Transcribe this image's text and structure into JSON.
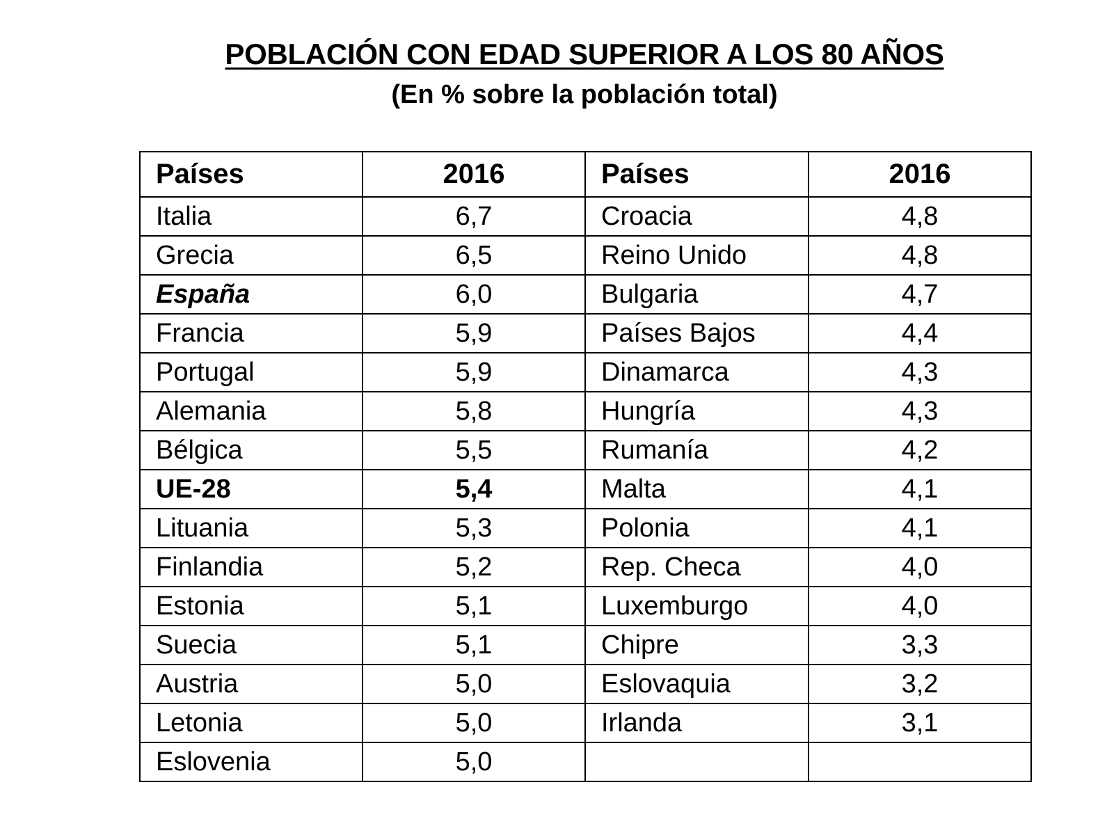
{
  "title": "POBLACIÓN CON EDAD SUPERIOR A LOS 80 AÑOS",
  "subtitle": "(En % sobre la población total)",
  "table": {
    "headers": [
      "Países",
      "2016",
      "Países",
      "2016"
    ],
    "left": [
      {
        "country": "Italia",
        "value": "6,7"
      },
      {
        "country": "Grecia",
        "value": "6,5"
      },
      {
        "country": "España",
        "value": "6,0"
      },
      {
        "country": "Francia",
        "value": "5,9"
      },
      {
        "country": "Portugal",
        "value": "5,9"
      },
      {
        "country": "Alemania",
        "value": "5,8"
      },
      {
        "country": "Bélgica",
        "value": "5,5"
      },
      {
        "country": "UE-28",
        "value": "5,4"
      },
      {
        "country": "Lituania",
        "value": "5,3"
      },
      {
        "country": "Finlandia",
        "value": "5,2"
      },
      {
        "country": "Estonia",
        "value": "5,1"
      },
      {
        "country": "Suecia",
        "value": "5,1"
      },
      {
        "country": "Austria",
        "value": "5,0"
      },
      {
        "country": "Letonia",
        "value": "5,0"
      },
      {
        "country": "Eslovenia",
        "value": "5,0"
      }
    ],
    "right": [
      {
        "country": "Croacia",
        "value": "4,8"
      },
      {
        "country": "Reino Unido",
        "value": "4,8"
      },
      {
        "country": "Bulgaria",
        "value": "4,7"
      },
      {
        "country": "Países Bajos",
        "value": "4,4"
      },
      {
        "country": "Dinamarca",
        "value": "4,3"
      },
      {
        "country": "Hungría",
        "value": "4,3"
      },
      {
        "country": "Rumanía",
        "value": "4,2"
      },
      {
        "country": "Malta",
        "value": "4,1"
      },
      {
        "country": "Polonia",
        "value": "4,1"
      },
      {
        "country": "Rep. Checa",
        "value": "4,0"
      },
      {
        "country": "Luxemburgo",
        "value": "4,0"
      },
      {
        "country": "Chipre",
        "value": "3,3"
      },
      {
        "country": "Eslovaquia",
        "value": "3,2"
      },
      {
        "country": "Irlanda",
        "value": "3,1"
      }
    ]
  }
}
